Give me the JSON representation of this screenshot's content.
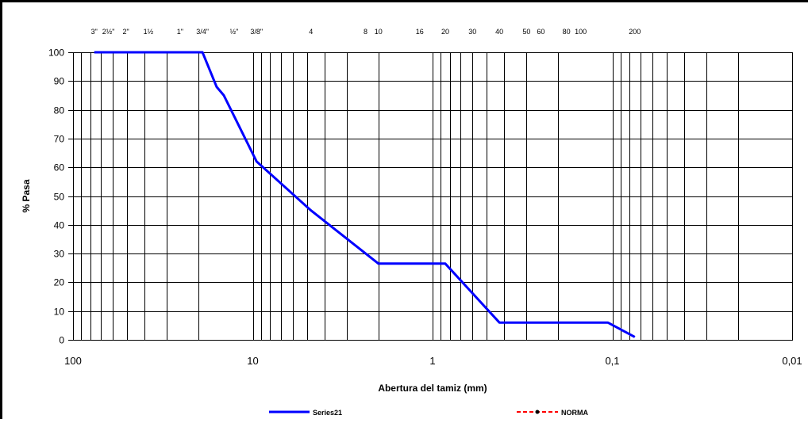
{
  "chart_data": {
    "type": "line",
    "xscale": "log",
    "xaxis_reversed": true,
    "xlim": [
      100,
      0.01
    ],
    "ylim": [
      0,
      100
    ],
    "grid": true,
    "legend_position": "bottom",
    "xlabel": "Abertura del tamiz (mm)",
    "ylabel": "% Pasa",
    "x_tick_labels": [
      {
        "value": 100,
        "label": "100"
      },
      {
        "value": 10,
        "label": "10"
      },
      {
        "value": 1,
        "label": "1"
      },
      {
        "value": 0.1,
        "label": "0,1"
      },
      {
        "value": 0.01,
        "label": "0,01"
      }
    ],
    "y_ticks": [
      0,
      10,
      20,
      30,
      40,
      50,
      60,
      70,
      80,
      90,
      100
    ],
    "sieves": [
      {
        "label": "3\"",
        "opening_mm": 76.2
      },
      {
        "label": "2½\"",
        "opening_mm": 63.5
      },
      {
        "label": "2\"",
        "opening_mm": 50.8
      },
      {
        "label": "1½",
        "opening_mm": 38.1
      },
      {
        "label": "1\"",
        "opening_mm": 25.4
      },
      {
        "label": "3/4\"",
        "opening_mm": 19.05
      },
      {
        "label": "½\"",
        "opening_mm": 12.7
      },
      {
        "label": "3/8\"",
        "opening_mm": 9.525
      },
      {
        "label": "4",
        "opening_mm": 4.75
      },
      {
        "label": "8",
        "opening_mm": 2.36
      },
      {
        "label": "10",
        "opening_mm": 2.0
      },
      {
        "label": "16",
        "opening_mm": 1.18
      },
      {
        "label": "20",
        "opening_mm": 0.85
      },
      {
        "label": "30",
        "opening_mm": 0.6
      },
      {
        "label": "40",
        "opening_mm": 0.425
      },
      {
        "label": "50",
        "opening_mm": 0.3
      },
      {
        "label": "60",
        "opening_mm": 0.25
      },
      {
        "label": "80",
        "opening_mm": 0.18
      },
      {
        "label": "100",
        "opening_mm": 0.15
      },
      {
        "label": "200",
        "opening_mm": 0.075
      }
    ],
    "series": [
      {
        "name": "Series21",
        "color": "#0000ff",
        "points": [
          {
            "x": 76.2,
            "y": 100
          },
          {
            "x": 19.05,
            "y": 100
          },
          {
            "x": 15.9,
            "y": 88
          },
          {
            "x": 14.5,
            "y": 85
          },
          {
            "x": 9.525,
            "y": 62
          },
          {
            "x": 4.75,
            "y": 45
          },
          {
            "x": 2.0,
            "y": 26.5
          },
          {
            "x": 0.85,
            "y": 26.5
          },
          {
            "x": 0.425,
            "y": 6
          },
          {
            "x": 0.106,
            "y": 6
          },
          {
            "x": 0.075,
            "y": 1
          }
        ]
      },
      {
        "name": "NORMA",
        "color": "#ff0000",
        "points": []
      }
    ]
  }
}
